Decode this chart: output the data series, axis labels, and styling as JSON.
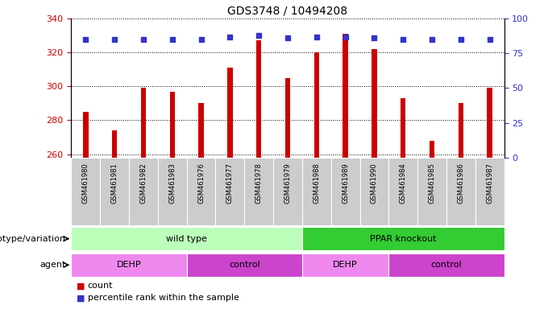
{
  "title": "GDS3748 / 10494208",
  "samples": [
    "GSM461980",
    "GSM461981",
    "GSM461982",
    "GSM461983",
    "GSM461976",
    "GSM461977",
    "GSM461978",
    "GSM461979",
    "GSM461988",
    "GSM461989",
    "GSM461990",
    "GSM461984",
    "GSM461985",
    "GSM461986",
    "GSM461987"
  ],
  "counts": [
    285,
    274,
    299,
    297,
    290,
    311,
    327,
    305,
    320,
    331,
    322,
    293,
    268,
    290,
    299
  ],
  "percentile_ranks": [
    85,
    85,
    85,
    85,
    85,
    87,
    88,
    86,
    87,
    87,
    86,
    85,
    85,
    85,
    85
  ],
  "ylim_left": [
    258,
    340
  ],
  "ylim_right": [
    0,
    100
  ],
  "yticks_left": [
    260,
    280,
    300,
    320,
    340
  ],
  "yticks_right": [
    0,
    25,
    50,
    75,
    100
  ],
  "bar_color": "#cc0000",
  "dot_color": "#3333cc",
  "bar_width": 0.18,
  "genotype_groups": [
    {
      "label": "wild type",
      "start": 0,
      "end": 8,
      "color": "#bbffbb"
    },
    {
      "label": "PPAR knockout",
      "start": 8,
      "end": 15,
      "color": "#33cc33"
    }
  ],
  "agent_groups": [
    {
      "label": "DEHP",
      "start": 0,
      "end": 4,
      "color": "#ee88ee"
    },
    {
      "label": "control",
      "start": 4,
      "end": 8,
      "color": "#cc44cc"
    },
    {
      "label": "DEHP",
      "start": 8,
      "end": 11,
      "color": "#ee88ee"
    },
    {
      "label": "control",
      "start": 11,
      "end": 15,
      "color": "#cc44cc"
    }
  ],
  "legend_count_color": "#cc0000",
  "legend_pct_color": "#3333cc",
  "legend_count_label": "count",
  "legend_pct_label": "percentile rank within the sample",
  "annotation_row1_label": "genotype/variation",
  "annotation_row2_label": "agent",
  "tick_label_color_left": "#cc0000",
  "tick_label_color_right": "#3333cc",
  "xticklabel_bg": "#cccccc",
  "grid_linestyle": ":",
  "grid_color": "#000000"
}
